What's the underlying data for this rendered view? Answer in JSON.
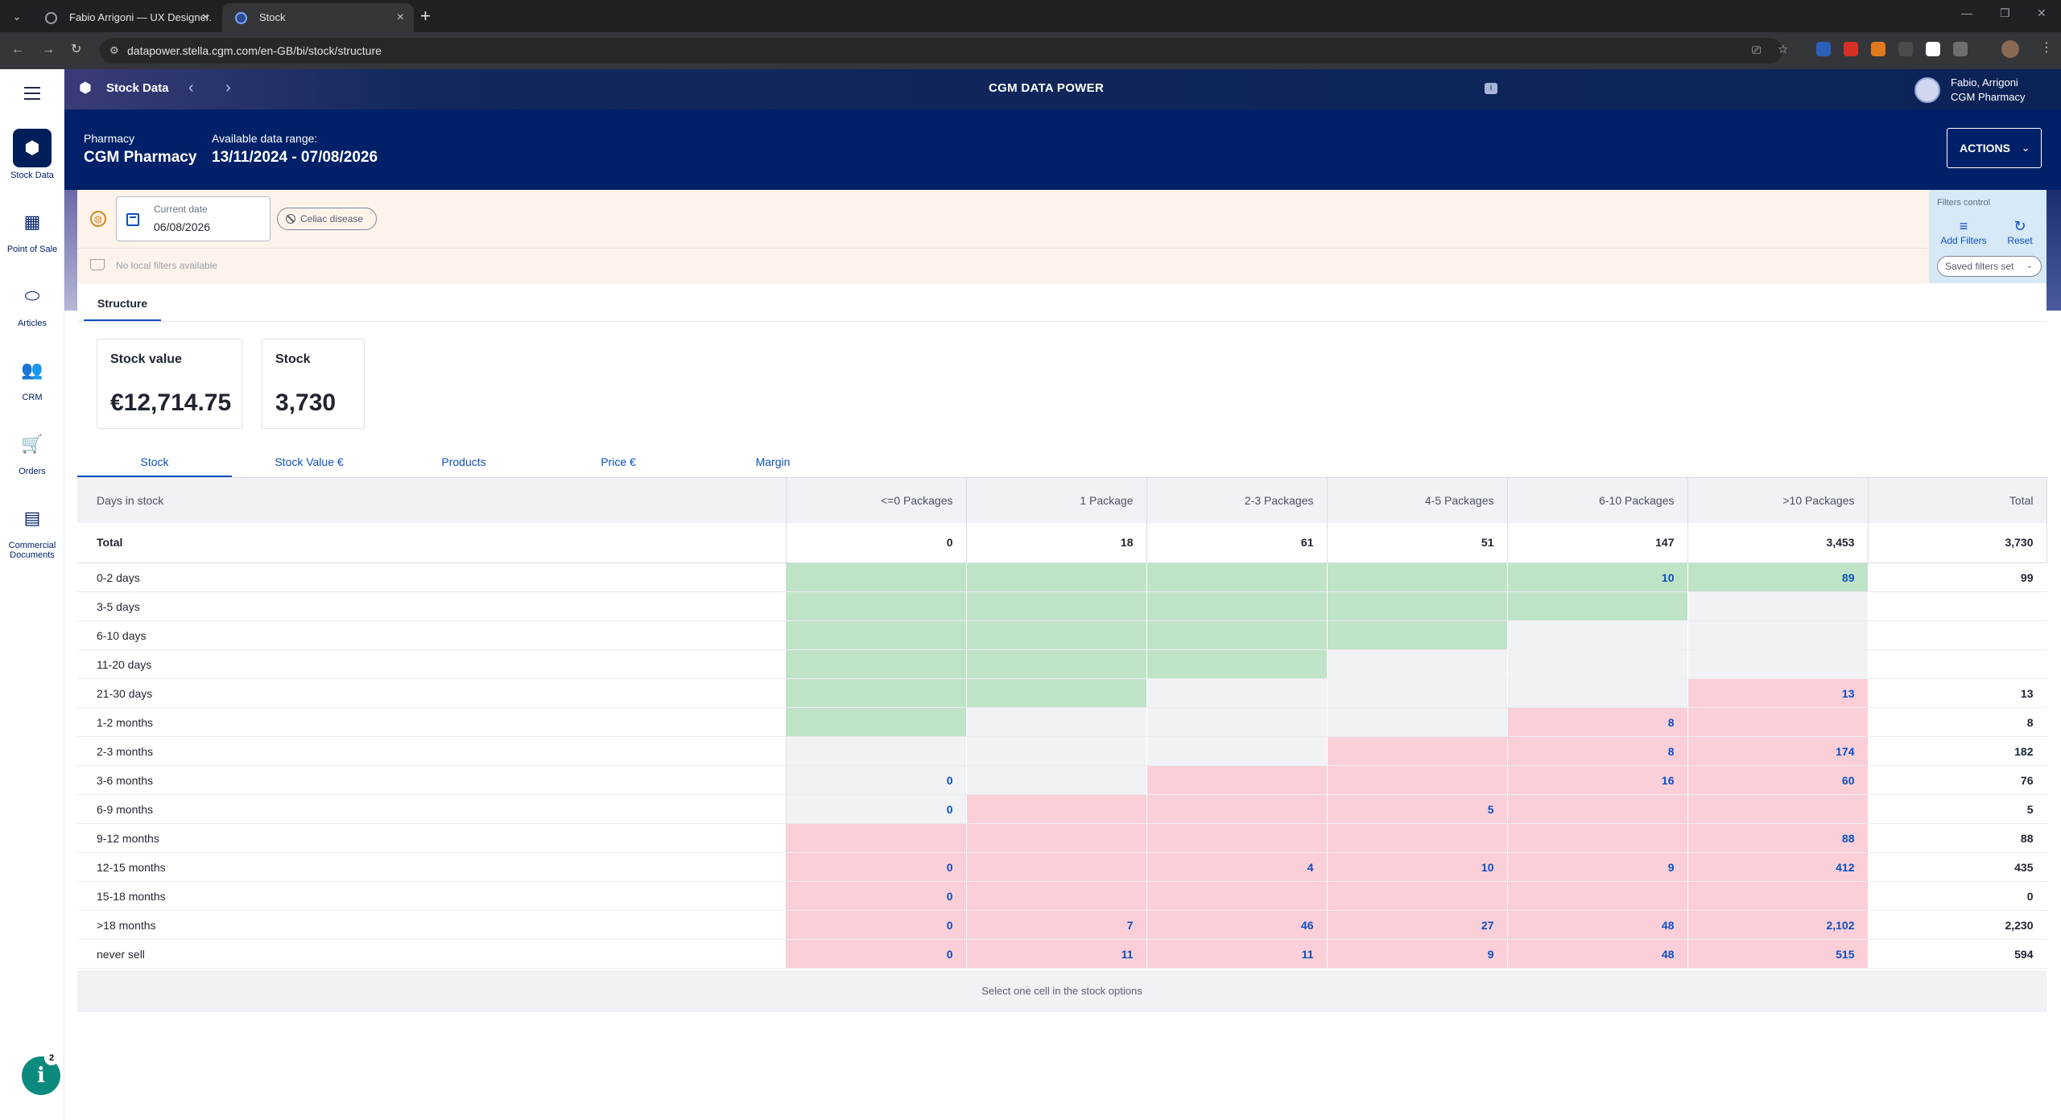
{
  "browser": {
    "tabs": [
      {
        "title": "Fabio Arrigoni — UX Designer.",
        "active": false
      },
      {
        "title": "Stock",
        "active": true
      }
    ],
    "url": "datapower.stella.cgm.com/en-GB/bi/stock/structure"
  },
  "rail": {
    "items": [
      {
        "label": "Stock Data",
        "icon": "cube-icon",
        "active": true
      },
      {
        "label": "Point of Sale",
        "icon": "calculator-icon",
        "active": false
      },
      {
        "label": "Articles",
        "icon": "pill-icon",
        "active": false
      },
      {
        "label": "CRM",
        "icon": "people-icon",
        "active": false
      },
      {
        "label": "Orders",
        "icon": "cart-icon",
        "active": false
      },
      {
        "label": "Commercial Documents",
        "icon": "document-icon",
        "active": false
      }
    ],
    "help_badge": "2"
  },
  "header": {
    "section_title": "Stock Data",
    "brand": "CGM DATA POWER",
    "user_name": "Fabio, Arrigoni",
    "user_org": "CGM Pharmacy",
    "pharmacy_label": "Pharmacy",
    "pharmacy_value": "CGM Pharmacy",
    "range_label": "Available data range:",
    "range_value": "13/11/2024 - 07/08/2026",
    "actions_label": "ACTIONS"
  },
  "filters": {
    "date_label": "Current date",
    "date_value": "06/08/2026",
    "chip_label": "Celiac disease",
    "no_local": "No local filters available",
    "control_title": "Filters control",
    "add_filters": "Add Filters",
    "reset": "Reset",
    "saved_set": "Saved filters set"
  },
  "structure_tab": "Structure",
  "kpis": [
    {
      "title": "Stock value",
      "value": "€12,714.75"
    },
    {
      "title": "Stock",
      "value": "3,730"
    }
  ],
  "subtabs": [
    "Stock",
    "Stock Value €",
    "Products",
    "Price €",
    "Margin"
  ],
  "colors": {
    "green": "#bfe3c6",
    "neutral": "#f1f2f6",
    "red": "#fbcfd8",
    "accent": "#0b4fbf",
    "navy": "#002169"
  },
  "table": {
    "columns": [
      "Days in stock",
      "<=0 Packages",
      "1 Package",
      "2-3 Packages",
      "4-5 Packages",
      "6-10 Packages",
      ">10 Packages",
      "Total"
    ],
    "total_row": {
      "label": "Total",
      "values": [
        "0",
        "18",
        "61",
        "51",
        "147",
        "3,453",
        "3,730"
      ]
    },
    "rows": [
      {
        "label": "0-2 days",
        "cells": [
          [
            "g",
            ""
          ],
          [
            "g",
            ""
          ],
          [
            "g",
            ""
          ],
          [
            "g",
            ""
          ],
          [
            "g",
            "10"
          ],
          [
            "g",
            "89"
          ]
        ],
        "total": "99"
      },
      {
        "label": "3-5 days",
        "cells": [
          [
            "g",
            ""
          ],
          [
            "g",
            ""
          ],
          [
            "g",
            ""
          ],
          [
            "g",
            ""
          ],
          [
            "g",
            ""
          ],
          [
            "n",
            ""
          ]
        ],
        "total": ""
      },
      {
        "label": "6-10 days",
        "cells": [
          [
            "g",
            ""
          ],
          [
            "g",
            ""
          ],
          [
            "g",
            ""
          ],
          [
            "g",
            ""
          ],
          [
            "n",
            ""
          ],
          [
            "n",
            ""
          ]
        ],
        "total": ""
      },
      {
        "label": "11-20 days",
        "cells": [
          [
            "g",
            ""
          ],
          [
            "g",
            ""
          ],
          [
            "g",
            ""
          ],
          [
            "n",
            ""
          ],
          [
            "n",
            ""
          ],
          [
            "n",
            ""
          ]
        ],
        "total": ""
      },
      {
        "label": "21-30 days",
        "cells": [
          [
            "g",
            ""
          ],
          [
            "g",
            ""
          ],
          [
            "n",
            ""
          ],
          [
            "n",
            ""
          ],
          [
            "n",
            ""
          ],
          [
            "r",
            "13"
          ]
        ],
        "total": "13"
      },
      {
        "label": "1-2 months",
        "cells": [
          [
            "g",
            ""
          ],
          [
            "n",
            ""
          ],
          [
            "n",
            ""
          ],
          [
            "n",
            ""
          ],
          [
            "r",
            "8"
          ],
          [
            "r",
            ""
          ]
        ],
        "total": "8"
      },
      {
        "label": "2-3 months",
        "cells": [
          [
            "n",
            ""
          ],
          [
            "n",
            ""
          ],
          [
            "n",
            ""
          ],
          [
            "r",
            ""
          ],
          [
            "r",
            "8"
          ],
          [
            "r",
            "174"
          ]
        ],
        "total": "182"
      },
      {
        "label": "3-6 months",
        "cells": [
          [
            "n",
            "0"
          ],
          [
            "n",
            ""
          ],
          [
            "r",
            ""
          ],
          [
            "r",
            ""
          ],
          [
            "r",
            "16"
          ],
          [
            "r",
            "60"
          ]
        ],
        "total": "76"
      },
      {
        "label": "6-9 months",
        "cells": [
          [
            "n",
            "0"
          ],
          [
            "r",
            ""
          ],
          [
            "r",
            ""
          ],
          [
            "r",
            "5"
          ],
          [
            "r",
            ""
          ],
          [
            "r",
            ""
          ]
        ],
        "total": "5"
      },
      {
        "label": "9-12 months",
        "cells": [
          [
            "r",
            ""
          ],
          [
            "r",
            ""
          ],
          [
            "r",
            ""
          ],
          [
            "r",
            ""
          ],
          [
            "r",
            ""
          ],
          [
            "r",
            "88"
          ]
        ],
        "total": "88"
      },
      {
        "label": "12-15 months",
        "cells": [
          [
            "r",
            "0"
          ],
          [
            "r",
            ""
          ],
          [
            "r",
            "4"
          ],
          [
            "r",
            "10"
          ],
          [
            "r",
            "9"
          ],
          [
            "r",
            "412"
          ]
        ],
        "total": "435"
      },
      {
        "label": "15-18 months",
        "cells": [
          [
            "r",
            "0"
          ],
          [
            "r",
            ""
          ],
          [
            "r",
            ""
          ],
          [
            "r",
            ""
          ],
          [
            "r",
            ""
          ],
          [
            "r",
            ""
          ]
        ],
        "total": "0"
      },
      {
        "label": ">18 months",
        "cells": [
          [
            "r",
            "0"
          ],
          [
            "r",
            "7"
          ],
          [
            "r",
            "46"
          ],
          [
            "r",
            "27"
          ],
          [
            "r",
            "48"
          ],
          [
            "r",
            "2,102"
          ]
        ],
        "total": "2,230"
      },
      {
        "label": "never sell",
        "cells": [
          [
            "r",
            "0"
          ],
          [
            "r",
            "11"
          ],
          [
            "r",
            "11"
          ],
          [
            "r",
            "9"
          ],
          [
            "r",
            "48"
          ],
          [
            "r",
            "515"
          ]
        ],
        "total": "594"
      }
    ],
    "footer_hint": "Select one cell in the stock options"
  }
}
